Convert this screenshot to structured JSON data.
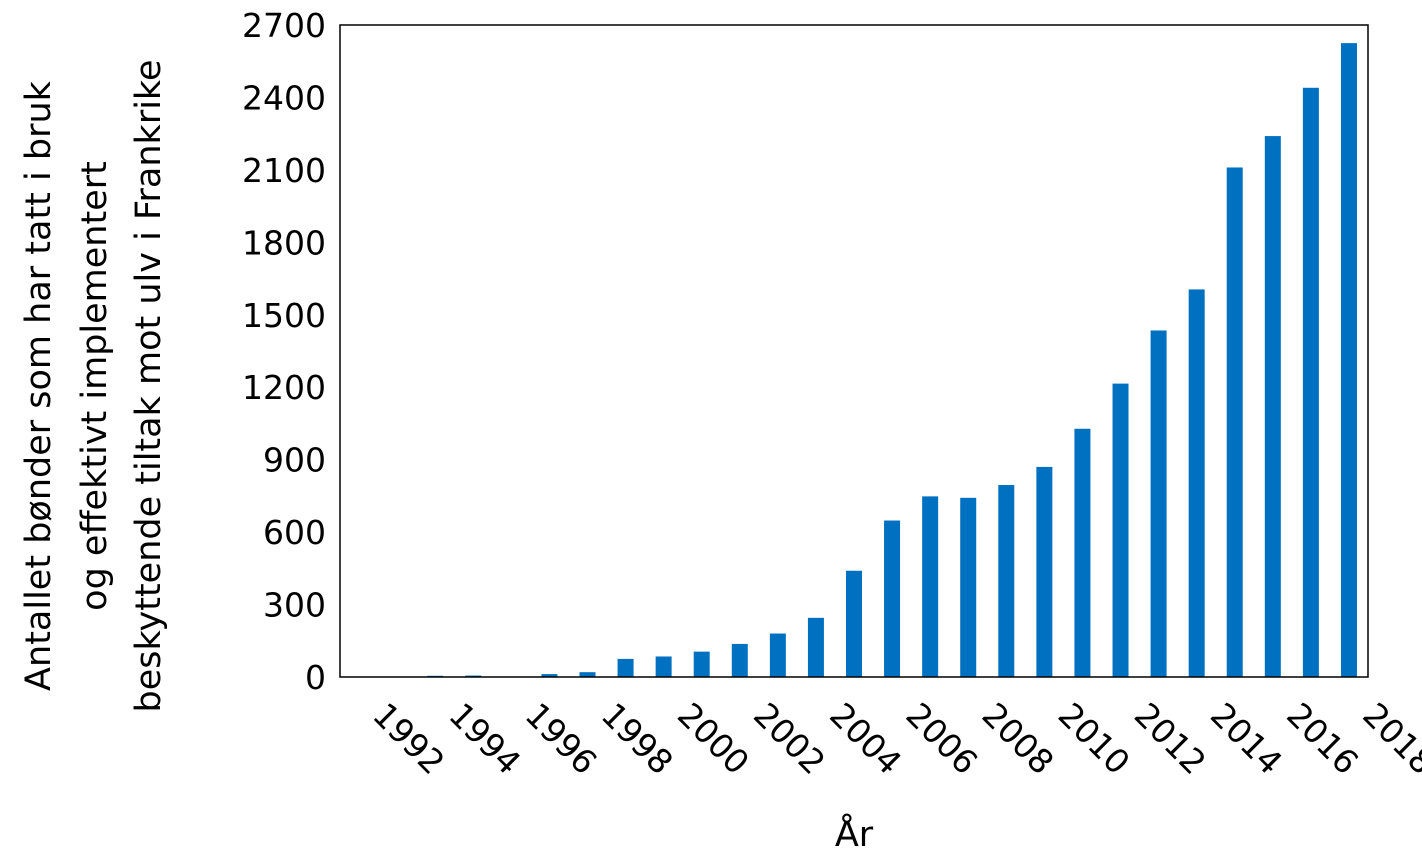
{
  "chart_data": {
    "type": "bar",
    "title": "",
    "xlabel": "År",
    "ylabel_lines": [
      "Antallet bønder som har tatt i bruk",
      "og effektivt implementert",
      "beskyttende tiltak mot ulv i Frankrike"
    ],
    "ylim": [
      0,
      2700
    ],
    "yticks": [
      0,
      300,
      600,
      900,
      1200,
      1500,
      1800,
      2100,
      2400,
      2700
    ],
    "x_tick_labels": [
      "1992",
      "1994",
      "1996",
      "1998",
      "2000",
      "2002",
      "2004",
      "2006",
      "2008",
      "2010",
      "2012",
      "2014",
      "2016",
      "2018"
    ],
    "categories": [
      1992,
      1993,
      1994,
      1995,
      1996,
      1997,
      1998,
      1999,
      2000,
      2001,
      2002,
      2003,
      2004,
      2005,
      2006,
      2007,
      2008,
      2009,
      2010,
      2011,
      2012,
      2013,
      2014,
      2015,
      2016,
      2017,
      2018
    ],
    "values": [
      0,
      0,
      5,
      6,
      0,
      12,
      20,
      75,
      85,
      105,
      137,
      180,
      245,
      440,
      648,
      748,
      742,
      795,
      870,
      1028,
      1215,
      1435,
      1605,
      2110,
      2240,
      2440,
      2625
    ],
    "bar_color": "#0070C0",
    "grid": false,
    "legend": "none"
  }
}
